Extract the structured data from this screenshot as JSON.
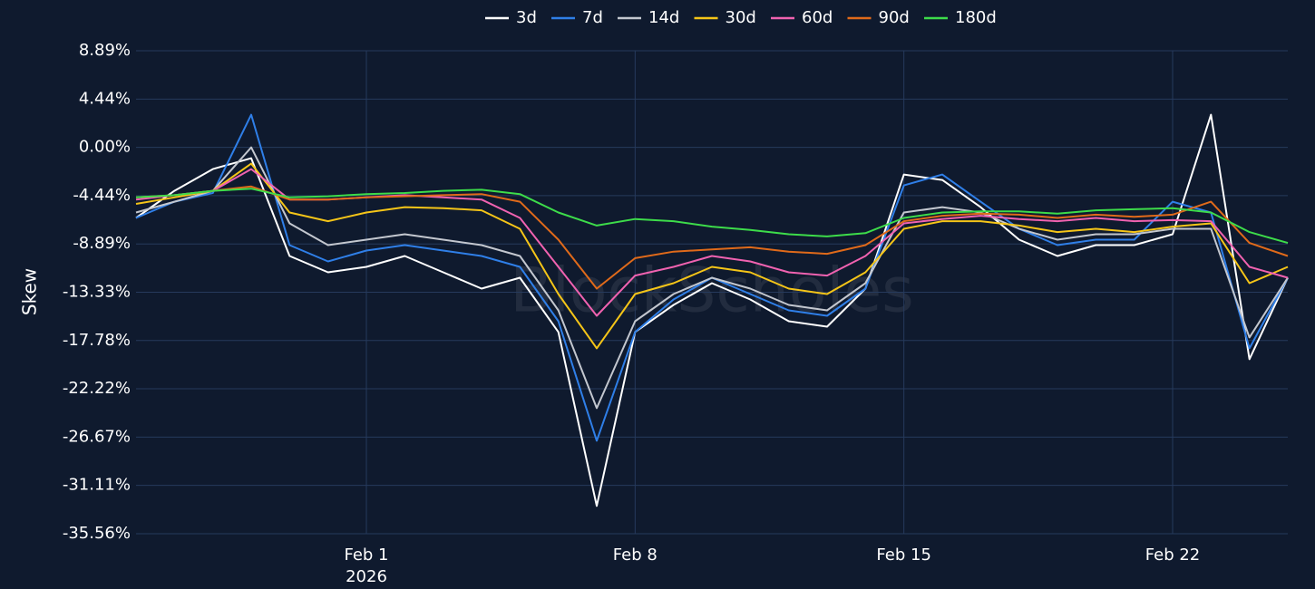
{
  "chart_data": {
    "type": "line",
    "ylabel": "Skew",
    "watermark": "BlockScholes",
    "x_year_label": "2026",
    "background": "#0f1a2e",
    "grid": true,
    "legend": "top",
    "x": [
      "2026-01-26",
      "2026-01-27",
      "2026-01-28",
      "2026-01-29",
      "2026-01-30",
      "2026-01-31",
      "2026-02-01",
      "2026-02-02",
      "2026-02-03",
      "2026-02-04",
      "2026-02-05",
      "2026-02-06",
      "2026-02-07",
      "2026-02-08",
      "2026-02-09",
      "2026-02-10",
      "2026-02-11",
      "2026-02-12",
      "2026-02-13",
      "2026-02-14",
      "2026-02-15",
      "2026-02-16",
      "2026-02-17",
      "2026-02-18",
      "2026-02-19",
      "2026-02-20",
      "2026-02-21",
      "2026-02-22",
      "2026-02-23",
      "2026-02-24",
      "2026-02-25"
    ],
    "xlim": [
      "2026-01-26",
      "2026-02-25"
    ],
    "xticks": [
      {
        "value": "2026-02-01",
        "label": "Feb 1"
      },
      {
        "value": "2026-02-08",
        "label": "Feb 8"
      },
      {
        "value": "2026-02-15",
        "label": "Feb 15"
      },
      {
        "value": "2026-02-22",
        "label": "Feb 22"
      }
    ],
    "ylim": [
      -35.56,
      8.89
    ],
    "yticks": [
      {
        "value": 8.89,
        "label": "8.89%"
      },
      {
        "value": 4.44,
        "label": "4.44%"
      },
      {
        "value": 0,
        "label": "0.00%"
      },
      {
        "value": -4.44,
        "label": "-4.44%"
      },
      {
        "value": -8.89,
        "label": "-8.89%"
      },
      {
        "value": -13.33,
        "label": "-13.33%"
      },
      {
        "value": -17.78,
        "label": "-17.78%"
      },
      {
        "value": -22.22,
        "label": "-22.22%"
      },
      {
        "value": -26.67,
        "label": "-26.67%"
      },
      {
        "value": -31.11,
        "label": "-31.11%"
      },
      {
        "value": -35.56,
        "label": "-35.56%"
      }
    ],
    "series": [
      {
        "name": "3d",
        "color": "#ffffff",
        "values": [
          -6.5,
          -4.0,
          -2.0,
          -1.0,
          -10.0,
          -11.5,
          -11.0,
          -10.0,
          -11.5,
          -13.0,
          -12.0,
          -17.0,
          -33.0,
          -17.0,
          -14.5,
          -12.5,
          -14.0,
          -16.0,
          -16.5,
          -13.0,
          -2.5,
          -3.0,
          -5.5,
          -8.5,
          -10.0,
          -9.0,
          -9.0,
          -8.0,
          3.0,
          -19.5,
          -12.0
        ]
      },
      {
        "name": "7d",
        "color": "#2f7fe8",
        "values": [
          -6.5,
          -5.0,
          -4.2,
          3.0,
          -9.0,
          -10.5,
          -9.5,
          -9.0,
          -9.5,
          -10.0,
          -11.0,
          -16.0,
          -27.0,
          -17.0,
          -14.0,
          -12.0,
          -13.5,
          -15.0,
          -15.5,
          -13.0,
          -3.5,
          -2.5,
          -5.0,
          -7.5,
          -9.0,
          -8.5,
          -8.5,
          -5.0,
          -6.0,
          -18.5,
          -12.0
        ]
      },
      {
        "name": "14d",
        "color": "#c3c7cf",
        "values": [
          -6.0,
          -5.0,
          -4.0,
          0.0,
          -7.0,
          -9.0,
          -8.5,
          -8.0,
          -8.5,
          -9.0,
          -10.0,
          -15.0,
          -24.0,
          -16.0,
          -13.5,
          -12.0,
          -13.0,
          -14.5,
          -15.0,
          -12.5,
          -6.0,
          -5.5,
          -6.0,
          -7.5,
          -8.5,
          -8.0,
          -8.0,
          -7.5,
          -7.5,
          -17.5,
          -12.0
        ]
      },
      {
        "name": "30d",
        "color": "#f5c518",
        "values": [
          -5.2,
          -4.6,
          -4.0,
          -1.5,
          -6.0,
          -6.8,
          -6.0,
          -5.5,
          -5.6,
          -5.8,
          -7.5,
          -13.5,
          -18.5,
          -13.5,
          -12.5,
          -11.0,
          -11.5,
          -13.0,
          -13.5,
          -11.5,
          -7.5,
          -6.8,
          -6.8,
          -7.2,
          -7.8,
          -7.5,
          -7.8,
          -7.3,
          -7.0,
          -12.5,
          -11.0
        ]
      },
      {
        "name": "60d",
        "color": "#f062b0",
        "values": [
          -4.8,
          -4.4,
          -4.0,
          -2.0,
          -4.8,
          -4.8,
          -4.6,
          -4.4,
          -4.6,
          -4.8,
          -6.5,
          -11.0,
          -15.5,
          -11.8,
          -11.0,
          -10.0,
          -10.5,
          -11.5,
          -11.8,
          -10.0,
          -7.0,
          -6.6,
          -6.3,
          -6.6,
          -6.8,
          -6.5,
          -6.8,
          -6.7,
          -6.8,
          -11.0,
          -12.0
        ]
      },
      {
        "name": "90d",
        "color": "#e06a1a",
        "values": [
          -4.6,
          -4.4,
          -4.0,
          -3.6,
          -4.8,
          -4.8,
          -4.6,
          -4.5,
          -4.4,
          -4.3,
          -5.0,
          -8.5,
          -13.0,
          -10.2,
          -9.6,
          -9.4,
          -9.2,
          -9.6,
          -9.8,
          -9.0,
          -6.8,
          -6.3,
          -6.1,
          -6.2,
          -6.5,
          -6.2,
          -6.4,
          -6.2,
          -5.0,
          -8.8,
          -10.0
        ]
      },
      {
        "name": "180d",
        "color": "#3ddc4a",
        "values": [
          -4.6,
          -4.4,
          -4.0,
          -3.8,
          -4.6,
          -4.5,
          -4.3,
          -4.2,
          -4.0,
          -3.9,
          -4.3,
          -6.0,
          -7.2,
          -6.6,
          -6.8,
          -7.3,
          -7.6,
          -8.0,
          -8.2,
          -7.9,
          -6.5,
          -6.0,
          -5.9,
          -5.9,
          -6.1,
          -5.8,
          -5.7,
          -5.6,
          -6.0,
          -7.8,
          -8.8
        ]
      }
    ]
  }
}
